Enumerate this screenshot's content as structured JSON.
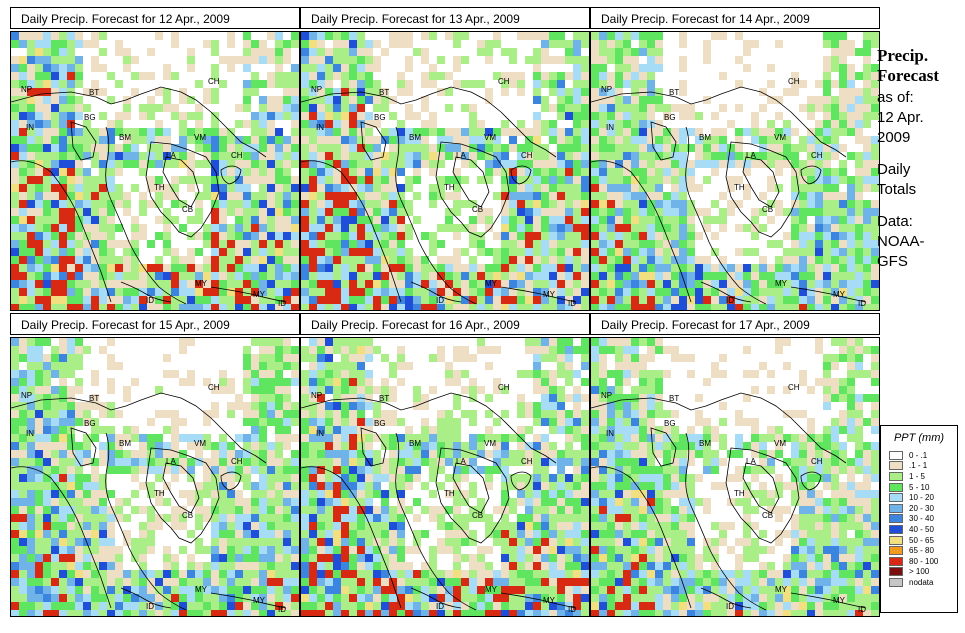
{
  "panels": [
    {
      "title": "Daily Precip. Forecast for  12 Apr., 2009",
      "seed": 11,
      "wet": 1.0
    },
    {
      "title": "Daily Precip. Forecast for  13 Apr., 2009",
      "seed": 23,
      "wet": 1.05
    },
    {
      "title": "Daily Precip. Forecast for  14 Apr., 2009",
      "seed": 37,
      "wet": 0.85
    },
    {
      "title": "Daily Precip. Forecast for  15 Apr., 2009",
      "seed": 41,
      "wet": 0.9
    },
    {
      "title": "Daily Precip. Forecast for  16 Apr., 2009",
      "seed": 53,
      "wet": 1.0
    },
    {
      "title": "Daily Precip. Forecast for  17 Apr., 2009",
      "seed": 67,
      "wet": 0.85
    }
  ],
  "country_labels": [
    {
      "code": "NP",
      "x": 10,
      "y": 60
    },
    {
      "code": "BT",
      "x": 78,
      "y": 63
    },
    {
      "code": "BG",
      "x": 73,
      "y": 88
    },
    {
      "code": "IN",
      "x": 15,
      "y": 98
    },
    {
      "code": "BM",
      "x": 108,
      "y": 108
    },
    {
      "code": "CH",
      "x": 197,
      "y": 52
    },
    {
      "code": "VM",
      "x": 183,
      "y": 108
    },
    {
      "code": "LA",
      "x": 155,
      "y": 126
    },
    {
      "code": "CH",
      "x": 220,
      "y": 126
    },
    {
      "code": "TH",
      "x": 143,
      "y": 158
    },
    {
      "code": "CB",
      "x": 171,
      "y": 180
    },
    {
      "code": "MY",
      "x": 184,
      "y": 254
    },
    {
      "code": "MY",
      "x": 242,
      "y": 265
    },
    {
      "code": "ID",
      "x": 135,
      "y": 271
    },
    {
      "code": "ID",
      "x": 267,
      "y": 274
    }
  ],
  "sidebar": {
    "title_line1": "Precip.",
    "title_line2": "Forecast",
    "as_of": "as of:",
    "date_line1": "12 Apr.",
    "date_line2": "2009",
    "totals_line1": "Daily",
    "totals_line2": "Totals",
    "data_line1": "Data:",
    "data_line2": "NOAA-",
    "data_line3": "GFS"
  },
  "legend": {
    "title": "PPT (mm)",
    "items": [
      {
        "label": "0 - .1",
        "color": "#ffffff"
      },
      {
        "label": ".1 - 1",
        "color": "#eedec4"
      },
      {
        "label": "1 - 5",
        "color": "#a9ee86"
      },
      {
        "label": "5 - 10",
        "color": "#5fe560"
      },
      {
        "label": "10 - 20",
        "color": "#a6dcf5"
      },
      {
        "label": "20 - 30",
        "color": "#6fb3e8"
      },
      {
        "label": "30 - 40",
        "color": "#3b85e0"
      },
      {
        "label": "40 - 50",
        "color": "#1f4fd8"
      },
      {
        "label": "50 - 65",
        "color": "#f2e080"
      },
      {
        "label": "65 - 80",
        "color": "#f29a1e"
      },
      {
        "label": "80 - 100",
        "color": "#d82a12"
      },
      {
        "label": "> 100",
        "color": "#7a0f0f"
      },
      {
        "label": "nodata",
        "color": "#c6c6c6"
      }
    ]
  }
}
